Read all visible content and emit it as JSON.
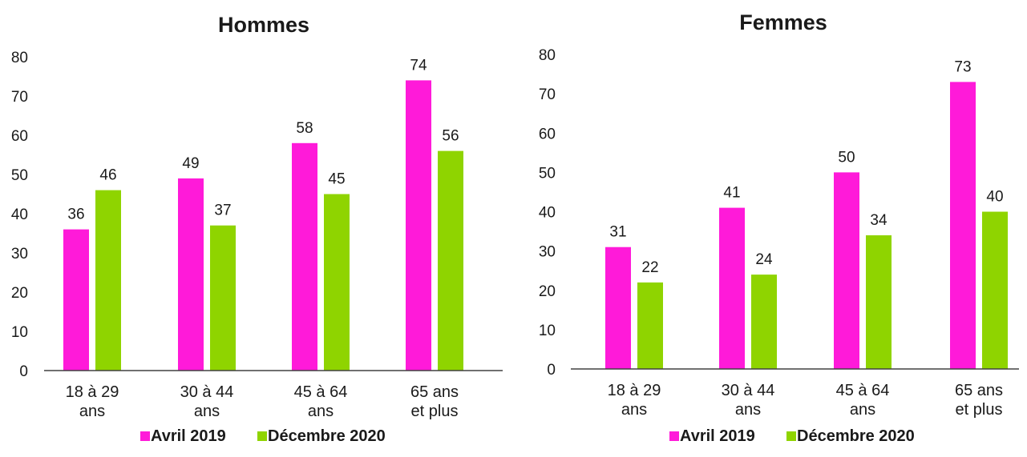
{
  "chart_data": [
    {
      "type": "bar",
      "title": "Hommes",
      "categories": [
        [
          "18 à 29",
          "ans"
        ],
        [
          "30 à 44",
          "ans"
        ],
        [
          "45 à 64",
          "ans"
        ],
        [
          "65 ans",
          "et plus"
        ]
      ],
      "series": [
        {
          "name": "Avril 2019",
          "values": [
            36,
            49,
            58,
            74
          ],
          "color": "#ff1ad9"
        },
        {
          "name": "Décembre 2020",
          "values": [
            46,
            37,
            45,
            56
          ],
          "color": "#8fd400"
        }
      ],
      "ylim": [
        0,
        80
      ],
      "yticks": [
        0,
        10,
        20,
        30,
        40,
        50,
        60,
        70,
        80
      ],
      "grid": false,
      "legend": "bottom"
    },
    {
      "type": "bar",
      "title": "Femmes",
      "categories": [
        [
          "18 à 29",
          "ans"
        ],
        [
          "30 à 44",
          "ans"
        ],
        [
          "45 à 64",
          "ans"
        ],
        [
          "65 ans",
          "et plus"
        ]
      ],
      "series": [
        {
          "name": "Avril 2019",
          "values": [
            31,
            41,
            50,
            73
          ],
          "color": "#ff1ad9"
        },
        {
          "name": "Décembre 2020",
          "values": [
            22,
            24,
            34,
            40
          ],
          "color": "#8fd400"
        }
      ],
      "ylim": [
        0,
        80
      ],
      "yticks": [
        0,
        10,
        20,
        30,
        40,
        50,
        60,
        70,
        80
      ],
      "grid": false,
      "legend": "bottom"
    }
  ]
}
